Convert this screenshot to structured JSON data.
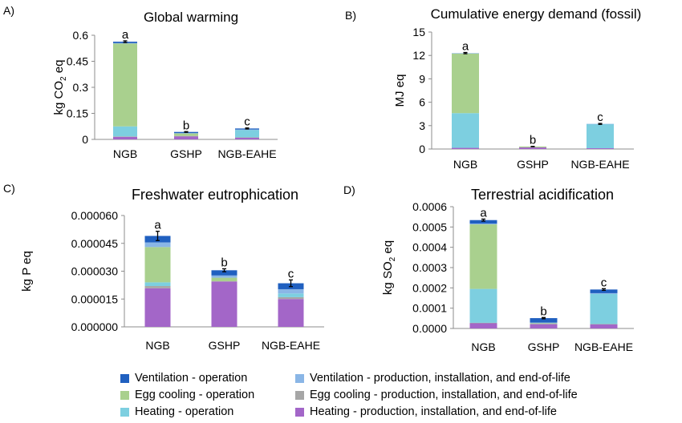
{
  "legend": [
    {
      "key": "vent_op",
      "label": "Ventilation - operation",
      "color": "#2060c0"
    },
    {
      "key": "vent_prod",
      "label": "Ventilation - production, installation, and end-of-life",
      "color": "#8ab6e6"
    },
    {
      "key": "egg_op",
      "label": "Egg cooling - operation",
      "color": "#a9d08e"
    },
    {
      "key": "egg_prod",
      "label": "Egg cooling - production, installation, and end-of-life",
      "color": "#a6a6a6"
    },
    {
      "key": "heat_op",
      "label": "Heating - operation",
      "color": "#7dcfe0"
    },
    {
      "key": "heat_prod",
      "label": "Heating - production, installation, and end-of-life",
      "color": "#a366c8"
    }
  ],
  "chart_data": [
    {
      "type": "bar",
      "stacked": true,
      "panel": "A)",
      "title": "Global warming",
      "ylabel_parts": [
        "kg CO",
        "2",
        " eq"
      ],
      "ylim": [
        0,
        0.6
      ],
      "yticks": [
        0,
        0.15,
        0.3,
        0.45,
        0.6
      ],
      "ytick_labels": [
        "0",
        "0.15",
        "0.3",
        "0.45",
        "0.6"
      ],
      "categories": [
        "NGB",
        "GSHP",
        "NGB-EAHE"
      ],
      "letters": [
        "a",
        "b",
        "c"
      ],
      "error": [
        0.005,
        0.002,
        0.003
      ],
      "series": [
        {
          "key": "heat_prod",
          "name": "Heating - production, installation, and end-of-life",
          "values": [
            0.015,
            0.018,
            0.01
          ]
        },
        {
          "key": "egg_prod",
          "name": "Egg cooling - production, installation, and end-of-life",
          "values": [
            0.002,
            0.002,
            0.002
          ]
        },
        {
          "key": "heat_op",
          "name": "Heating - operation",
          "values": [
            0.058,
            0.0,
            0.043
          ]
        },
        {
          "key": "egg_op",
          "name": "Egg cooling - operation",
          "values": [
            0.478,
            0.015,
            0.0
          ]
        },
        {
          "key": "vent_prod",
          "name": "Ventilation - production, installation, and end-of-life",
          "values": [
            0.002,
            0.002,
            0.002
          ]
        },
        {
          "key": "vent_op",
          "name": "Ventilation - operation",
          "values": [
            0.008,
            0.006,
            0.006
          ]
        }
      ]
    },
    {
      "type": "bar",
      "stacked": true,
      "panel": "B)",
      "title": "Cumulative energy demand (fossil)",
      "ylabel_parts": [
        "MJ eq"
      ],
      "ylim": [
        0,
        15
      ],
      "yticks": [
        0,
        3,
        6,
        9,
        12,
        15
      ],
      "ytick_labels": [
        "0",
        "3",
        "6",
        "9",
        "12",
        "15"
      ],
      "categories": [
        "NGB",
        "GSHP",
        "NGB-EAHE"
      ],
      "letters": [
        "a",
        "b",
        "c"
      ],
      "error": [
        0.08,
        0.02,
        0.06
      ],
      "series": [
        {
          "key": "heat_prod",
          "name": "Heating - production, installation, and end-of-life",
          "values": [
            0.15,
            0.2,
            0.1
          ]
        },
        {
          "key": "egg_prod",
          "name": "Egg cooling - production, installation, and end-of-life",
          "values": [
            0.0,
            0.0,
            0.0
          ]
        },
        {
          "key": "heat_op",
          "name": "Heating - operation",
          "values": [
            4.45,
            0.0,
            3.1
          ]
        },
        {
          "key": "egg_op",
          "name": "Egg cooling - operation",
          "values": [
            7.65,
            0.12,
            0.0
          ]
        },
        {
          "key": "vent_prod",
          "name": "Ventilation - production, installation, and end-of-life",
          "values": [
            0.05,
            0.0,
            0.02
          ]
        },
        {
          "key": "vent_op",
          "name": "Ventilation - operation",
          "values": [
            0.0,
            0.0,
            0.0
          ]
        }
      ]
    },
    {
      "type": "bar",
      "stacked": true,
      "panel": "C)",
      "title": "Freshwater eutrophication",
      "ylabel_parts": [
        "kg P eq"
      ],
      "ylim": [
        0,
        6e-05
      ],
      "yticks": [
        0,
        1.5e-05,
        3e-05,
        4.5e-05,
        6e-05
      ],
      "ytick_labels": [
        "0.000000",
        "0.000015",
        "0.000030",
        "0.000045",
        "0.000060"
      ],
      "categories": [
        "NGB",
        "GSHP",
        "NGB-EAHE"
      ],
      "letters": [
        "a",
        "b",
        "c"
      ],
      "error": [
        2.5e-06,
        8e-07,
        1.8e-06
      ],
      "series": [
        {
          "key": "heat_prod",
          "name": "Heating - production, installation, and end-of-life",
          "values": [
            2.08e-05,
            2.45e-05,
            1.5e-05
          ]
        },
        {
          "key": "egg_prod",
          "name": "Egg cooling - production, installation, and end-of-life",
          "values": [
            1.2e-06,
            0.0,
            1e-06
          ]
        },
        {
          "key": "heat_op",
          "name": "Heating - operation",
          "values": [
            2e-06,
            0.0,
            2e-06
          ]
        },
        {
          "key": "egg_op",
          "name": "Egg cooling - operation",
          "values": [
            1.9e-05,
            2e-06,
            0.0
          ]
        },
        {
          "key": "vent_prod",
          "name": "Ventilation - production, installation, and end-of-life",
          "values": [
            2.5e-06,
            1.2e-06,
            2.3e-06
          ]
        },
        {
          "key": "vent_op",
          "name": "Ventilation - operation",
          "values": [
            3.5e-06,
            2.8e-06,
            3.2e-06
          ]
        }
      ]
    },
    {
      "type": "bar",
      "stacked": true,
      "panel": "D)",
      "title": "Terrestrial acidification",
      "ylabel_parts": [
        "kg SO",
        "2",
        " eq"
      ],
      "ylim": [
        0,
        0.0006
      ],
      "yticks": [
        0,
        0.0001,
        0.0002,
        0.0003,
        0.0004,
        0.0005,
        0.0006
      ],
      "ytick_labels": [
        "0.0000",
        "0.0001",
        "0.0002",
        "0.0003",
        "0.0004",
        "0.0005",
        "0.0006"
      ],
      "categories": [
        "NGB",
        "GSHP",
        "NGB-EAHE"
      ],
      "letters": [
        "a",
        "b",
        "c"
      ],
      "error": [
        5e-06,
        3e-06,
        4e-06
      ],
      "series": [
        {
          "key": "heat_prod",
          "name": "Heating - production, installation, and end-of-life",
          "values": [
            2.7e-05,
            2.2e-05,
            2.1e-05
          ]
        },
        {
          "key": "egg_prod",
          "name": "Egg cooling - production, installation, and end-of-life",
          "values": [
            1e-06,
            1e-06,
            1e-06
          ]
        },
        {
          "key": "heat_op",
          "name": "Heating - operation",
          "values": [
            0.000167,
            0.0,
            0.000148
          ]
        },
        {
          "key": "egg_op",
          "name": "Egg cooling - operation",
          "values": [
            0.000318,
            3e-06,
            0.0
          ]
        },
        {
          "key": "vent_prod",
          "name": "Ventilation - production, installation, and end-of-life",
          "values": [
            4e-06,
            3e-06,
            4e-06
          ]
        },
        {
          "key": "vent_op",
          "name": "Ventilation - operation",
          "values": [
            1.7e-05,
            2.2e-05,
            1.8e-05
          ]
        }
      ]
    }
  ]
}
